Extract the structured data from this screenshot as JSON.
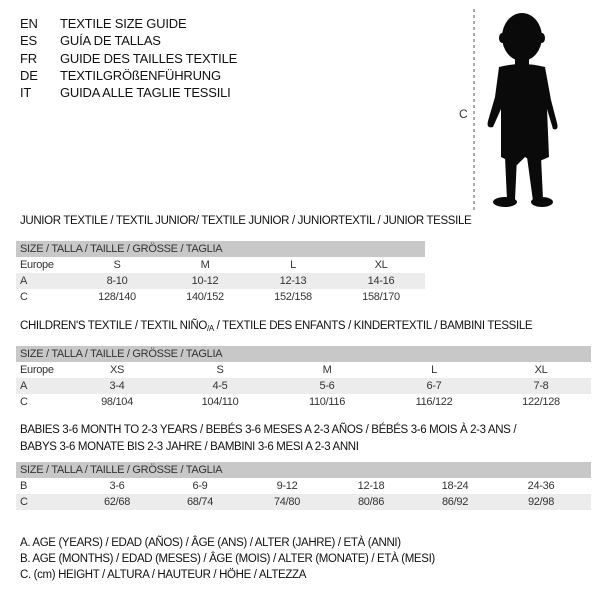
{
  "languages": [
    {
      "code": "EN",
      "title": "TEXTILE SIZE GUIDE"
    },
    {
      "code": "ES",
      "title": "GUÍA DE TALLAS"
    },
    {
      "code": "FR",
      "title": "GUIDE DES TAILLES TEXTILE"
    },
    {
      "code": "DE",
      "title": "TEXTILGRÖßENFÜHRUNG"
    },
    {
      "code": "IT",
      "title": "GUIDA ALLE TAGLIE TESSILI"
    }
  ],
  "figure": {
    "measure_label": "C",
    "icon": "child-silhouette-icon"
  },
  "junior": {
    "title": "JUNIOR TEXTILE / TEXTIL JUNIOR/ TEXTILE JUNIOR / JUNIORTEXTIL / JUNIOR TESSILE",
    "header": "SIZE / TALLA / TAILLE / GRÖSSE / TAGLIA",
    "rows": [
      {
        "label": "Europe",
        "values": [
          "S",
          "M",
          "L",
          "XL"
        ]
      },
      {
        "label": "A",
        "values": [
          "8-10",
          "10-12",
          "12-13",
          "14-16"
        ]
      },
      {
        "label": "C",
        "values": [
          "128/140",
          "140/152",
          "152/158",
          "158/170"
        ]
      }
    ]
  },
  "children": {
    "title_pre": "CHILDREN'S TEXTILE / TEXTIL NIÑO",
    "title_sub": "/A",
    "title_post": " / TEXTILE DES ENFANTS / KINDERTEXTIL / BAMBINI TESSILE",
    "header": "SIZE / TALLA / TAILLE / GRÖSSE / TAGLIA",
    "rows": [
      {
        "label": "Europe",
        "values": [
          "XS",
          "S",
          "M",
          "L",
          "XL"
        ]
      },
      {
        "label": "A",
        "values": [
          "3-4",
          "4-5",
          "5-6",
          "6-7",
          "7-8"
        ]
      },
      {
        "label": "C",
        "values": [
          "98/104",
          "104/110",
          "110/116",
          "116/122",
          "122/128"
        ]
      }
    ]
  },
  "babies": {
    "title_line1": "BABIES 3-6 MONTH TO 2-3 YEARS / BEBÉS 3-6 MESES A 2-3 AÑOS / BÉBÉS 3-6 MOIS À 2-3 ANS /",
    "title_line2": "BABYS 3-6 MONATE BIS 2-3 JAHRE / BAMBINI 3-6 MESI A 2-3 ANNI",
    "header": "SIZE / TALLA / TAILLE / GRÖSSE / TAGLIA",
    "rows": [
      {
        "label": "B",
        "values": [
          "3-6",
          "6-9",
          "9-12",
          "12-18",
          "18-24",
          "24-36"
        ]
      },
      {
        "label": "C",
        "values": [
          "62/68",
          "68/74",
          "74/80",
          "80/86",
          "86/92",
          "92/98"
        ]
      }
    ]
  },
  "legend": [
    "A. AGE (YEARS) / EDAD (AÑOS) / ÂGE (ANS) / ALTER (JAHRE) / ETÀ (ANNI)",
    "B. AGE (MONTHS) / EDAD (MESES) / ÂGE (MOIS) / ALTER (MONATE) / ETÀ (MESI)",
    "C. (cm) HEIGHT / ALTURA / HAUTEUR / HÖHE / ALTEZZA"
  ]
}
